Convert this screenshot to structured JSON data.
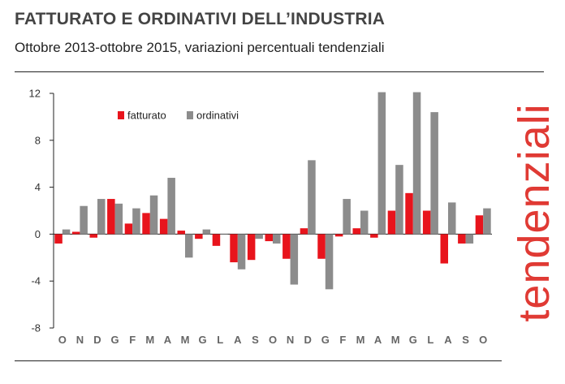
{
  "header": {
    "title": "FATTURATO E ORDINATIVI DELL’INDUSTRIA",
    "subtitle": "Ottobre 2013-ottobre 2015, variazioni percentuali tendenziali",
    "side_label": "tendenziali"
  },
  "colors": {
    "fatturato": "#e8141c",
    "ordinativi": "#8c8c8c",
    "accent": "#e03a34"
  },
  "chart_data": {
    "type": "bar",
    "title": "FATTURATO E ORDINATIVI DELL’INDUSTRIA",
    "subtitle": "Ottobre 2013-ottobre 2015, variazioni percentuali tendenziali",
    "xlabel": "",
    "ylabel": "",
    "ylim": [
      -8,
      12
    ],
    "yticks": [
      -8,
      -4,
      0,
      4,
      8,
      12
    ],
    "grid": false,
    "legend_position": "top-left",
    "categories": [
      "O",
      "N",
      "D",
      "G",
      "F",
      "M",
      "A",
      "M",
      "G",
      "L",
      "A",
      "S",
      "O",
      "N",
      "D",
      "G",
      "F",
      "M",
      "A",
      "M",
      "G",
      "L",
      "A",
      "S",
      "O"
    ],
    "series": [
      {
        "name": "fatturato",
        "values": [
          -0.8,
          0.2,
          -0.3,
          3.0,
          0.9,
          1.8,
          1.3,
          0.3,
          -0.4,
          -1.0,
          -2.4,
          -2.2,
          -0.6,
          -2.1,
          0.5,
          -2.1,
          -0.2,
          0.5,
          -0.3,
          2.0,
          3.5,
          2.0,
          -2.5,
          -0.8,
          1.6
        ]
      },
      {
        "name": "ordinativi",
        "values": [
          0.4,
          2.4,
          3.0,
          2.6,
          2.2,
          3.3,
          4.8,
          -2.0,
          0.4,
          0.0,
          -3.0,
          -0.4,
          -0.8,
          -4.3,
          6.3,
          -4.7,
          3.0,
          2.0,
          12.1,
          5.9,
          12.1,
          10.4,
          2.7,
          -0.8,
          2.2
        ]
      }
    ]
  }
}
